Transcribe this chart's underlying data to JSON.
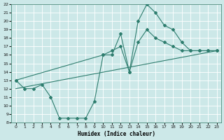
{
  "xlabel": "Humidex (Indice chaleur)",
  "bg_color": "#cce8e8",
  "line_color": "#2e7d6e",
  "grid_color": "#ffffff",
  "xmin": -0.5,
  "xmax": 23.5,
  "ymin": 8,
  "ymax": 22,
  "yticks": [
    8,
    9,
    10,
    11,
    12,
    13,
    14,
    15,
    16,
    17,
    18,
    19,
    20,
    21,
    22
  ],
  "xticks": [
    0,
    1,
    2,
    3,
    4,
    5,
    6,
    7,
    8,
    9,
    10,
    11,
    12,
    13,
    14,
    15,
    16,
    17,
    18,
    19,
    20,
    21,
    22,
    23
  ],
  "line1_x": [
    0,
    1,
    2,
    3,
    4,
    5,
    6,
    7,
    8,
    9,
    10,
    11,
    12,
    13,
    14,
    15,
    16,
    17,
    18,
    19,
    20,
    21,
    22,
    23
  ],
  "line1_y": [
    13,
    12,
    12,
    12.5,
    11,
    8.5,
    8.5,
    8.5,
    8.5,
    10.5,
    16,
    16,
    18.5,
    14,
    20,
    22,
    21,
    19.5,
    19,
    17.5,
    16.5,
    16.5,
    16.5,
    16.5
  ],
  "line2_x": [
    0,
    10,
    11,
    12,
    13,
    14,
    15,
    16,
    17,
    18,
    19,
    20,
    21,
    22,
    23
  ],
  "line2_y": [
    13,
    16,
    16.5,
    17,
    14,
    17.5,
    19,
    18,
    17.5,
    17,
    16.5,
    16.5,
    16.5,
    16.5,
    16.5
  ],
  "line3_x": [
    0,
    23
  ],
  "line3_y": [
    12,
    16.5
  ]
}
